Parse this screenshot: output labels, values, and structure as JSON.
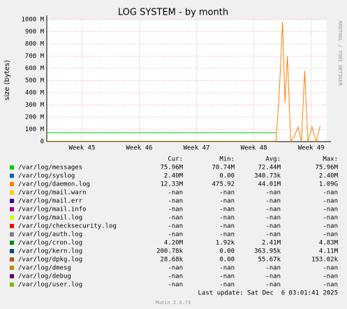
{
  "chart_data": {
    "type": "line",
    "title": "LOG SYSTEM - by month",
    "y_label": "size (bytes)",
    "side_note": "RRDTOOL / TOBI OETIKER",
    "x": [
      0,
      3,
      6,
      9,
      12,
      15,
      18,
      21,
      24,
      27,
      28,
      28.4,
      28.8,
      29.1,
      29.4,
      29.8,
      30.2,
      30.7,
      31.1,
      31.5,
      31.9,
      32.4,
      32.9,
      33.4
    ],
    "xlim": [
      0,
      34.2
    ],
    "xticks": [
      {
        "value": 4.3,
        "label": "Week 45"
      },
      {
        "value": 11.3,
        "label": "Week 46"
      },
      {
        "value": 18.3,
        "label": "Week 47"
      },
      {
        "value": 25.3,
        "label": "Week 48"
      },
      {
        "value": 32.3,
        "label": "Week 49"
      }
    ],
    "ylim": [
      0,
      1000
    ],
    "yticks": [
      0,
      {
        "value": 100,
        "label": "100 M"
      },
      {
        "value": 200,
        "label": "200 M"
      },
      {
        "value": 300,
        "label": "300 M"
      },
      {
        "value": 400,
        "label": "400 M"
      },
      {
        "value": 500,
        "label": "500 M"
      },
      {
        "value": 600,
        "label": "600 M"
      },
      {
        "value": 700,
        "label": "700 M"
      },
      {
        "value": 800,
        "label": "800 M"
      },
      {
        "value": 900,
        "label": "900 M"
      },
      {
        "value": {
          "value": 1000,
          "label": "1000 M"
        }
      }
    ],
    "grid": true,
    "stat_headers": [
      "Cur:",
      "Min:",
      "Avg:",
      "Max:"
    ],
    "series": [
      {
        "name": "/var/log/messages",
        "color": "#00cc00",
        "stats": [
          "75.96M",
          "70.74M",
          "72.44M",
          "75.96M"
        ],
        "values": [
          72,
          72,
          72,
          72,
          72,
          72,
          72,
          72,
          72,
          72,
          72,
          null,
          null,
          null,
          null,
          null,
          null,
          null,
          null,
          null,
          null,
          null,
          null,
          null
        ]
      },
      {
        "name": "/var/log/syslog",
        "color": "#0066b3",
        "stats": [
          "2.40M",
          "0.00",
          "340.73k",
          "2.40M"
        ],
        "values": [
          0.3,
          0.3,
          0.3,
          0.3,
          0.3,
          0.3,
          0.3,
          0.3,
          0.3,
          0.3,
          0.3,
          null,
          null,
          null,
          null,
          null,
          null,
          null,
          null,
          null,
          null,
          null,
          null,
          null
        ]
      },
      {
        "name": "/var/log/daemon.log",
        "color": "#ff8000",
        "stats": [
          "12.33M",
          "475.92",
          "44.01M",
          "1.09G"
        ],
        "values": [
          0,
          0,
          0,
          0,
          0,
          0,
          0,
          0,
          0,
          0,
          5,
          400,
          980,
          320,
          700,
          0,
          40,
          120,
          0,
          580,
          0,
          120,
          0,
          130
        ]
      },
      {
        "name": "/var/log/mail.warn",
        "color": "#ffcc00",
        "stats": [
          "-nan",
          "-nan",
          "-nan",
          "-nan"
        ],
        "values": [
          null,
          null,
          null,
          null,
          null,
          null,
          null,
          null,
          null,
          null,
          null,
          null,
          null,
          null,
          null,
          null,
          null,
          null,
          null,
          null,
          null,
          null,
          null,
          null
        ]
      },
      {
        "name": "/var/log/mail.err",
        "color": "#330099",
        "stats": [
          "-nan",
          "-nan",
          "-nan",
          "-nan"
        ],
        "values": [
          null,
          null,
          null,
          null,
          null,
          null,
          null,
          null,
          null,
          null,
          null,
          null,
          null,
          null,
          null,
          null,
          null,
          null,
          null,
          null,
          null,
          null,
          null,
          null
        ]
      },
      {
        "name": "/var/log/mail.info",
        "color": "#990099",
        "stats": [
          "-nan",
          "-nan",
          "-nan",
          "-nan"
        ],
        "values": [
          null,
          null,
          null,
          null,
          null,
          null,
          null,
          null,
          null,
          null,
          null,
          null,
          null,
          null,
          null,
          null,
          null,
          null,
          null,
          null,
          null,
          null,
          null,
          null
        ]
      },
      {
        "name": "/var/log/mail.log",
        "color": "#ccff00",
        "stats": [
          "-nan",
          "-nan",
          "-nan",
          "-nan"
        ],
        "values": [
          null,
          null,
          null,
          null,
          null,
          null,
          null,
          null,
          null,
          null,
          null,
          null,
          null,
          null,
          null,
          null,
          null,
          null,
          null,
          null,
          null,
          null,
          null,
          null
        ]
      },
      {
        "name": "/var/log/checksecurity.log",
        "color": "#ff0000",
        "stats": [
          "-nan",
          "-nan",
          "-nan",
          "-nan"
        ],
        "values": [
          null,
          null,
          null,
          null,
          null,
          null,
          null,
          null,
          null,
          null,
          null,
          null,
          null,
          null,
          null,
          null,
          null,
          null,
          null,
          null,
          null,
          null,
          null,
          null
        ]
      },
      {
        "name": "/var/log/auth.log",
        "color": "#808080",
        "stats": [
          "-nan",
          "-nan",
          "-nan",
          "-nan"
        ],
        "values": [
          null,
          null,
          null,
          null,
          null,
          null,
          null,
          null,
          null,
          null,
          null,
          null,
          null,
          null,
          null,
          null,
          null,
          null,
          null,
          null,
          null,
          null,
          null,
          null
        ]
      },
      {
        "name": "/var/log/cron.log",
        "color": "#008f00",
        "stats": [
          "4.20M",
          "1.92k",
          "2.41M",
          "4.83M"
        ],
        "values": [
          2.4,
          2.4,
          2.4,
          2.4,
          2.4,
          2.4,
          2.4,
          2.4,
          2.4,
          2.4,
          2.4,
          null,
          null,
          null,
          null,
          null,
          null,
          null,
          null,
          null,
          null,
          null,
          null,
          null
        ]
      },
      {
        "name": "/var/log/kern.log",
        "color": "#00487d",
        "stats": [
          "200.78k",
          "0.00",
          "363.95k",
          "4.11M"
        ],
        "values": [
          0.4,
          0.4,
          0.4,
          0.4,
          0.4,
          0.4,
          0.4,
          0.4,
          0.4,
          0.4,
          0.4,
          null,
          null,
          null,
          null,
          null,
          null,
          null,
          null,
          null,
          null,
          null,
          null,
          null
        ]
      },
      {
        "name": "/var/log/dpkg.log",
        "color": "#b35a00",
        "stats": [
          "28.68k",
          "0.00",
          "55.67k",
          "153.02k"
        ],
        "values": [
          0.05,
          0.05,
          0.05,
          0.05,
          0.05,
          0.05,
          0.05,
          0.05,
          0.05,
          0.05,
          0.05,
          null,
          null,
          null,
          null,
          null,
          null,
          null,
          null,
          null,
          null,
          null,
          null,
          null
        ]
      },
      {
        "name": "/var/log/dmesg",
        "color": "#b38f00",
        "stats": [
          "-nan",
          "-nan",
          "-nan",
          "-nan"
        ],
        "values": [
          null,
          null,
          null,
          null,
          null,
          null,
          null,
          null,
          null,
          null,
          null,
          null,
          null,
          null,
          null,
          null,
          null,
          null,
          null,
          null,
          null,
          null,
          null,
          null
        ]
      },
      {
        "name": "/var/log/debug",
        "color": "#6b006b",
        "stats": [
          "-nan",
          "-nan",
          "-nan",
          "-nan"
        ],
        "values": [
          null,
          null,
          null,
          null,
          null,
          null,
          null,
          null,
          null,
          null,
          null,
          null,
          null,
          null,
          null,
          null,
          null,
          null,
          null,
          null,
          null,
          null,
          null,
          null
        ]
      },
      {
        "name": "/var/log/user.log",
        "color": "#8fb300",
        "stats": [
          "-nan",
          "-nan",
          "-nan",
          "-nan"
        ],
        "values": [
          null,
          null,
          null,
          null,
          null,
          null,
          null,
          null,
          null,
          null,
          null,
          null,
          null,
          null,
          null,
          null,
          null,
          null,
          null,
          null,
          null,
          null,
          null,
          null
        ]
      }
    ],
    "last_update": "Last update: Sat Dec  6 03:01:41 2025",
    "footer": "Munin 2.0.73"
  }
}
